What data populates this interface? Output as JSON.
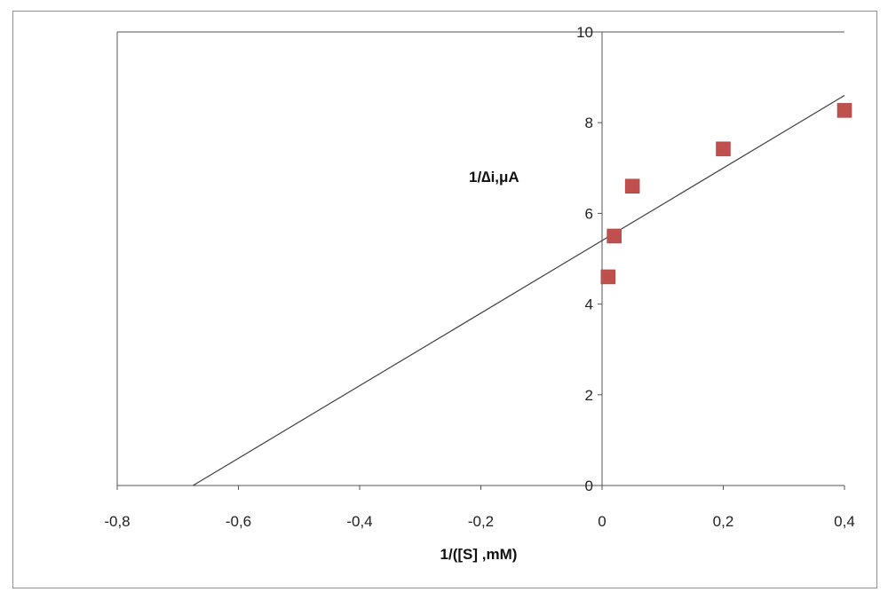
{
  "chart_data": {
    "type": "scatter",
    "title": "",
    "xlabel": "1/([S] ,mM)",
    "ylabel": "1/∆i,μA",
    "xlim": [
      -0.8,
      0.4
    ],
    "ylim": [
      0,
      10
    ],
    "x_ticks": [
      "-0,8",
      "-0,6",
      "-0,4",
      "-0,2",
      "0",
      "0,2",
      "0,4"
    ],
    "y_ticks": [
      "0",
      "2",
      "4",
      "6",
      "8",
      "10"
    ],
    "x_tick_values": [
      -0.8,
      -0.6,
      -0.4,
      -0.2,
      0,
      0.2,
      0.4
    ],
    "y_tick_values": [
      0,
      2,
      4,
      6,
      8,
      10
    ],
    "grid": false,
    "legend": "none",
    "series": [
      {
        "marker": "square",
        "color": "#c0504d",
        "points": [
          {
            "x": 0.01,
            "y": 4.6
          },
          {
            "x": 0.02,
            "y": 5.5
          },
          {
            "x": 0.05,
            "y": 6.6
          },
          {
            "x": 0.2,
            "y": 7.42
          },
          {
            "x": 0.4,
            "y": 8.27
          }
        ]
      }
    ],
    "trendline": {
      "color": "#404040",
      "from": {
        "x": -0.675,
        "y": 0
      },
      "to": {
        "x": 0.4,
        "y": 8.6
      }
    }
  }
}
